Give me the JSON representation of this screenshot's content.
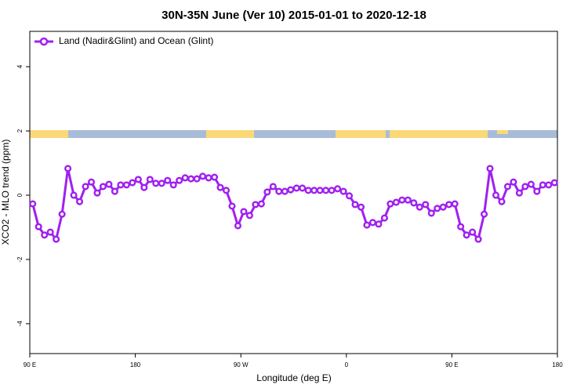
{
  "chart_data": {
    "type": "line",
    "title": "30N-35N June (Ver 10)   2015-01-01 to 2020-12-18",
    "x_label": "Longitude (deg E)",
    "y_label": "XCO2 - MLO trend (ppm)",
    "xlim": [
      90,
      540
    ],
    "ylim": [
      -4.93,
      5.1
    ],
    "xticks": [
      {
        "value": 90,
        "label": "90 E"
      },
      180,
      {
        "value": 270,
        "label": "90 W"
      },
      {
        "value": 360,
        "label": "0"
      },
      {
        "value": 450,
        "label": "90 E"
      },
      {
        "value": 540,
        "label": "180"
      }
    ],
    "yticks": [
      -4,
      -2,
      0,
      2,
      4
    ],
    "legend": "top-left",
    "x": [
      92.5,
      97.5,
      102.5,
      107.5,
      112.5,
      117.5,
      122.5,
      127.5,
      132.5,
      137.5,
      142.5,
      147.5,
      152.5,
      157.5,
      162.5,
      167.5,
      172.5,
      177.5,
      182.5,
      187.5,
      192.5,
      197.5,
      202.5,
      207.5,
      212.5,
      217.5,
      222.5,
      227.5,
      232.5,
      237.5,
      242.5,
      247.5,
      252.5,
      257.5,
      262.5,
      267.5,
      272.5,
      277.5,
      282.5,
      287.5,
      292.5,
      297.5,
      302.5,
      307.5,
      312.5,
      317.5,
      322.5,
      327.5,
      332.5,
      337.5,
      342.5,
      347.5,
      352.5,
      357.5,
      362.5,
      367.5,
      372.5,
      377.5,
      382.5,
      387.5,
      392.5,
      397.5,
      402.5,
      407.5,
      412.5,
      417.5,
      422.5,
      427.5,
      432.5,
      437.5,
      442.5,
      447.5,
      452.5,
      457.5,
      462.5,
      467.5,
      472.5,
      477.5,
      482.5,
      487.5,
      492.5,
      497.5,
      502.5,
      507.5,
      512.5,
      517.5,
      522.5,
      527.5,
      532.5,
      537.5
    ],
    "series": [
      {
        "name": "Land (Nadir&Glint) and Ocean (Glint)",
        "color": "#a020f0",
        "values": [
          -0.27,
          -0.98,
          -1.24,
          -1.15,
          -1.37,
          -0.59,
          0.83,
          0.0,
          -0.2,
          0.27,
          0.41,
          0.07,
          0.27,
          0.34,
          0.12,
          0.32,
          0.32,
          0.39,
          0.49,
          0.24,
          0.49,
          0.37,
          0.37,
          0.46,
          0.32,
          0.46,
          0.54,
          0.51,
          0.51,
          0.59,
          0.54,
          0.56,
          0.24,
          0.15,
          -0.34,
          -0.95,
          -0.51,
          -0.63,
          -0.29,
          -0.27,
          0.1,
          0.27,
          0.12,
          0.12,
          0.17,
          0.22,
          0.22,
          0.15,
          0.15,
          0.15,
          0.15,
          0.15,
          0.2,
          0.12,
          -0.02,
          -0.29,
          -0.37,
          -0.93,
          -0.85,
          -0.9,
          -0.71,
          -0.27,
          -0.22,
          -0.15,
          -0.15,
          -0.24,
          -0.37,
          -0.29,
          -0.56,
          -0.41,
          -0.37,
          -0.29,
          -0.27,
          -0.98,
          -1.24,
          -1.15,
          -1.37,
          -0.59,
          0.83,
          0.0,
          -0.2,
          0.27,
          0.41,
          0.07,
          0.27,
          0.34,
          0.12,
          0.32,
          0.32,
          0.39
        ]
      }
    ]
  }
}
